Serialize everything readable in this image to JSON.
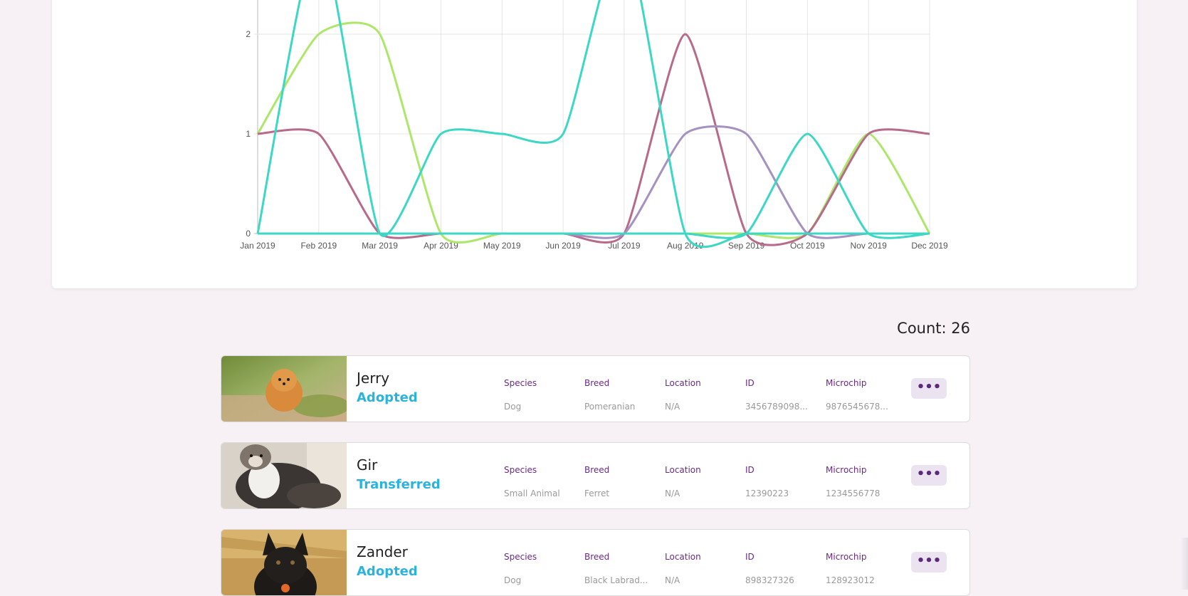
{
  "chart_data": {
    "type": "line",
    "x": [
      "Jan 2019",
      "Feb 2019",
      "Mar 2019",
      "Apr 2019",
      "May 2019",
      "Jun 2019",
      "Jul 2019",
      "Aug 2019",
      "Sep 2019",
      "Oct 2019",
      "Nov 2019",
      "Dec 2019"
    ],
    "y_ticks": [
      "0",
      "1",
      "2"
    ],
    "ylim_visible": [
      0,
      2.3
    ],
    "grid": true,
    "series": [
      {
        "color": "#ade76a",
        "values": [
          1,
          2,
          2,
          0,
          0,
          0,
          0,
          0,
          0,
          0,
          1,
          0
        ]
      },
      {
        "color": "#b86a8b",
        "values": [
          1,
          1,
          0,
          0,
          0,
          0,
          0,
          2,
          0,
          0,
          1,
          1
        ]
      },
      {
        "color": "#a592c0",
        "values": [
          0,
          0,
          0,
          0,
          0,
          0,
          0,
          1,
          1,
          0,
          0,
          0
        ]
      },
      {
        "color": "#3cd7c5",
        "values": [
          0,
          0,
          0,
          0,
          0,
          0,
          0,
          0,
          0,
          1,
          0,
          0
        ]
      },
      {
        "color": "#3cd7c5",
        "values": [
          0,
          3,
          0,
          1,
          1,
          1,
          3,
          0,
          0,
          0,
          0,
          0
        ]
      }
    ]
  },
  "list": {
    "count_label": "Count: 26",
    "field_labels": {
      "species": "Species",
      "breed": "Breed",
      "location": "Location",
      "id": "ID",
      "microchip": "Microchip"
    },
    "more_label": "•••",
    "pets": [
      {
        "name": "Jerry",
        "status": "Adopted",
        "species": "Dog",
        "breed": "Pomeranian",
        "location": "N/A",
        "id": "3456789098...",
        "microchip": "9876545678..."
      },
      {
        "name": "Gir",
        "status": "Transferred",
        "species": "Small Animal",
        "breed": "Ferret",
        "location": "N/A",
        "id": "12390223",
        "microchip": "1234556778"
      },
      {
        "name": "Zander",
        "status": "Adopted",
        "species": "Dog",
        "breed": "Black Labrad...",
        "location": "N/A",
        "id": "898327326",
        "microchip": "128923012"
      }
    ]
  }
}
